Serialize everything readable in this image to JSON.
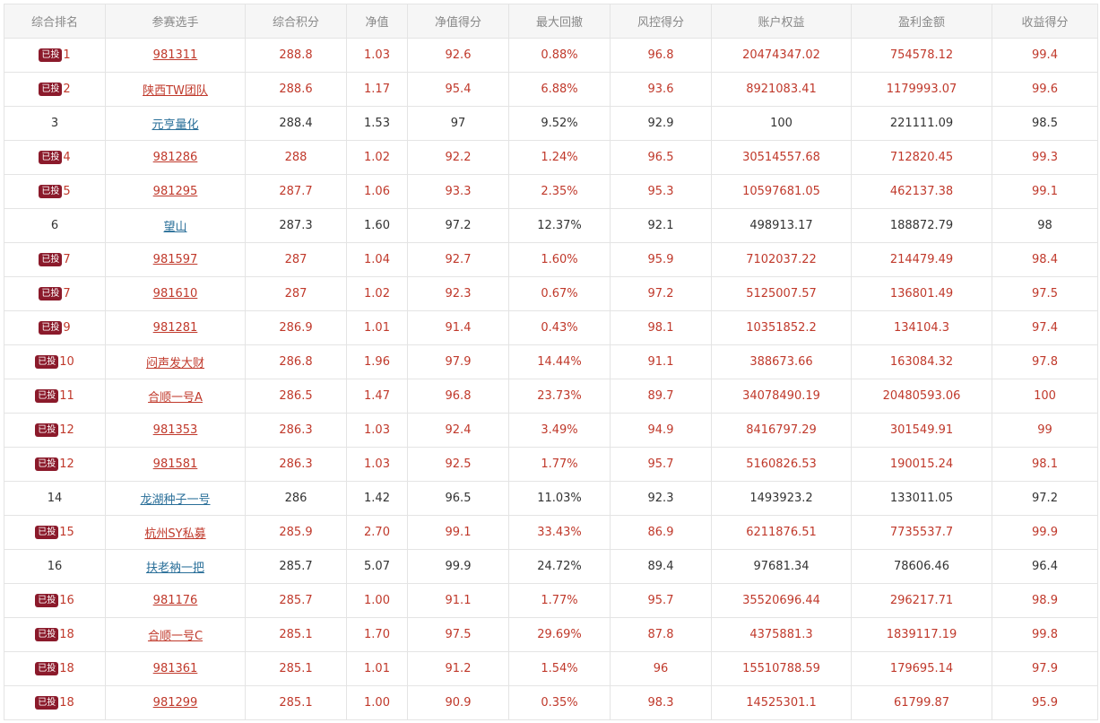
{
  "colors": {
    "invested_text": "#c0392b",
    "plain_text": "#333333",
    "plain_link": "#2a6f99",
    "badge_bg": "#8b1a2b",
    "header_bg": "#f6f6f6",
    "header_text": "#888888",
    "border": "#e4e4e4"
  },
  "table": {
    "headers": [
      "综合排名",
      "参赛选手",
      "综合积分",
      "净值",
      "净值得分",
      "最大回撤",
      "风控得分",
      "账户权益",
      "盈利金额",
      "收益得分"
    ],
    "badge_label": "已投",
    "rows": [
      {
        "invested": true,
        "rank": "1",
        "name": "981311",
        "score": "288.8",
        "nav": "1.03",
        "nav_score": "92.6",
        "max_dd": "0.88%",
        "risk_score": "96.8",
        "equity": "20474347.02",
        "profit": "754578.12",
        "return_score": "99.4"
      },
      {
        "invested": true,
        "rank": "2",
        "name": "陕西TW团队",
        "score": "288.6",
        "nav": "1.17",
        "nav_score": "95.4",
        "max_dd": "6.88%",
        "risk_score": "93.6",
        "equity": "8921083.41",
        "profit": "1179993.07",
        "return_score": "99.6"
      },
      {
        "invested": false,
        "rank": "3",
        "name": "元亨量化",
        "score": "288.4",
        "nav": "1.53",
        "nav_score": "97",
        "max_dd": "9.52%",
        "risk_score": "92.9",
        "equity": "100",
        "profit": "221111.09",
        "return_score": "98.5"
      },
      {
        "invested": true,
        "rank": "4",
        "name": "981286",
        "score": "288",
        "nav": "1.02",
        "nav_score": "92.2",
        "max_dd": "1.24%",
        "risk_score": "96.5",
        "equity": "30514557.68",
        "profit": "712820.45",
        "return_score": "99.3"
      },
      {
        "invested": true,
        "rank": "5",
        "name": "981295",
        "score": "287.7",
        "nav": "1.06",
        "nav_score": "93.3",
        "max_dd": "2.35%",
        "risk_score": "95.3",
        "equity": "10597681.05",
        "profit": "462137.38",
        "return_score": "99.1"
      },
      {
        "invested": false,
        "rank": "6",
        "name": "望山",
        "score": "287.3",
        "nav": "1.60",
        "nav_score": "97.2",
        "max_dd": "12.37%",
        "risk_score": "92.1",
        "equity": "498913.17",
        "profit": "188872.79",
        "return_score": "98"
      },
      {
        "invested": true,
        "rank": "7",
        "name": "981597",
        "score": "287",
        "nav": "1.04",
        "nav_score": "92.7",
        "max_dd": "1.60%",
        "risk_score": "95.9",
        "equity": "7102037.22",
        "profit": "214479.49",
        "return_score": "98.4"
      },
      {
        "invested": true,
        "rank": "7",
        "name": "981610",
        "score": "287",
        "nav": "1.02",
        "nav_score": "92.3",
        "max_dd": "0.67%",
        "risk_score": "97.2",
        "equity": "5125007.57",
        "profit": "136801.49",
        "return_score": "97.5"
      },
      {
        "invested": true,
        "rank": "9",
        "name": "981281",
        "score": "286.9",
        "nav": "1.01",
        "nav_score": "91.4",
        "max_dd": "0.43%",
        "risk_score": "98.1",
        "equity": "10351852.2",
        "profit": "134104.3",
        "return_score": "97.4"
      },
      {
        "invested": true,
        "rank": "10",
        "name": "闷声发大财",
        "score": "286.8",
        "nav": "1.96",
        "nav_score": "97.9",
        "max_dd": "14.44%",
        "risk_score": "91.1",
        "equity": "388673.66",
        "profit": "163084.32",
        "return_score": "97.8"
      },
      {
        "invested": true,
        "rank": "11",
        "name": "合顺一号A",
        "score": "286.5",
        "nav": "1.47",
        "nav_score": "96.8",
        "max_dd": "23.73%",
        "risk_score": "89.7",
        "equity": "34078490.19",
        "profit": "20480593.06",
        "return_score": "100"
      },
      {
        "invested": true,
        "rank": "12",
        "name": "981353",
        "score": "286.3",
        "nav": "1.03",
        "nav_score": "92.4",
        "max_dd": "3.49%",
        "risk_score": "94.9",
        "equity": "8416797.29",
        "profit": "301549.91",
        "return_score": "99"
      },
      {
        "invested": true,
        "rank": "12",
        "name": "981581",
        "score": "286.3",
        "nav": "1.03",
        "nav_score": "92.5",
        "max_dd": "1.77%",
        "risk_score": "95.7",
        "equity": "5160826.53",
        "profit": "190015.24",
        "return_score": "98.1"
      },
      {
        "invested": false,
        "rank": "14",
        "name": "龙湖种子一号",
        "score": "286",
        "nav": "1.42",
        "nav_score": "96.5",
        "max_dd": "11.03%",
        "risk_score": "92.3",
        "equity": "1493923.2",
        "profit": "133011.05",
        "return_score": "97.2"
      },
      {
        "invested": true,
        "rank": "15",
        "name": "杭州SY私募",
        "score": "285.9",
        "nav": "2.70",
        "nav_score": "99.1",
        "max_dd": "33.43%",
        "risk_score": "86.9",
        "equity": "6211876.51",
        "profit": "7735537.7",
        "return_score": "99.9"
      },
      {
        "invested": false,
        "rank": "16",
        "name": "扶老衲一把",
        "score": "285.7",
        "nav": "5.07",
        "nav_score": "99.9",
        "max_dd": "24.72%",
        "risk_score": "89.4",
        "equity": "97681.34",
        "profit": "78606.46",
        "return_score": "96.4"
      },
      {
        "invested": true,
        "rank": "16",
        "name": "981176",
        "score": "285.7",
        "nav": "1.00",
        "nav_score": "91.1",
        "max_dd": "1.77%",
        "risk_score": "95.7",
        "equity": "35520696.44",
        "profit": "296217.71",
        "return_score": "98.9"
      },
      {
        "invested": true,
        "rank": "18",
        "name": "合顺一号C",
        "score": "285.1",
        "nav": "1.70",
        "nav_score": "97.5",
        "max_dd": "29.69%",
        "risk_score": "87.8",
        "equity": "4375881.3",
        "profit": "1839117.19",
        "return_score": "99.8"
      },
      {
        "invested": true,
        "rank": "18",
        "name": "981361",
        "score": "285.1",
        "nav": "1.01",
        "nav_score": "91.2",
        "max_dd": "1.54%",
        "risk_score": "96",
        "equity": "15510788.59",
        "profit": "179695.14",
        "return_score": "97.9"
      },
      {
        "invested": true,
        "rank": "18",
        "name": "981299",
        "score": "285.1",
        "nav": "1.00",
        "nav_score": "90.9",
        "max_dd": "0.35%",
        "risk_score": "98.3",
        "equity": "14525301.1",
        "profit": "61799.87",
        "return_score": "95.9"
      }
    ]
  }
}
